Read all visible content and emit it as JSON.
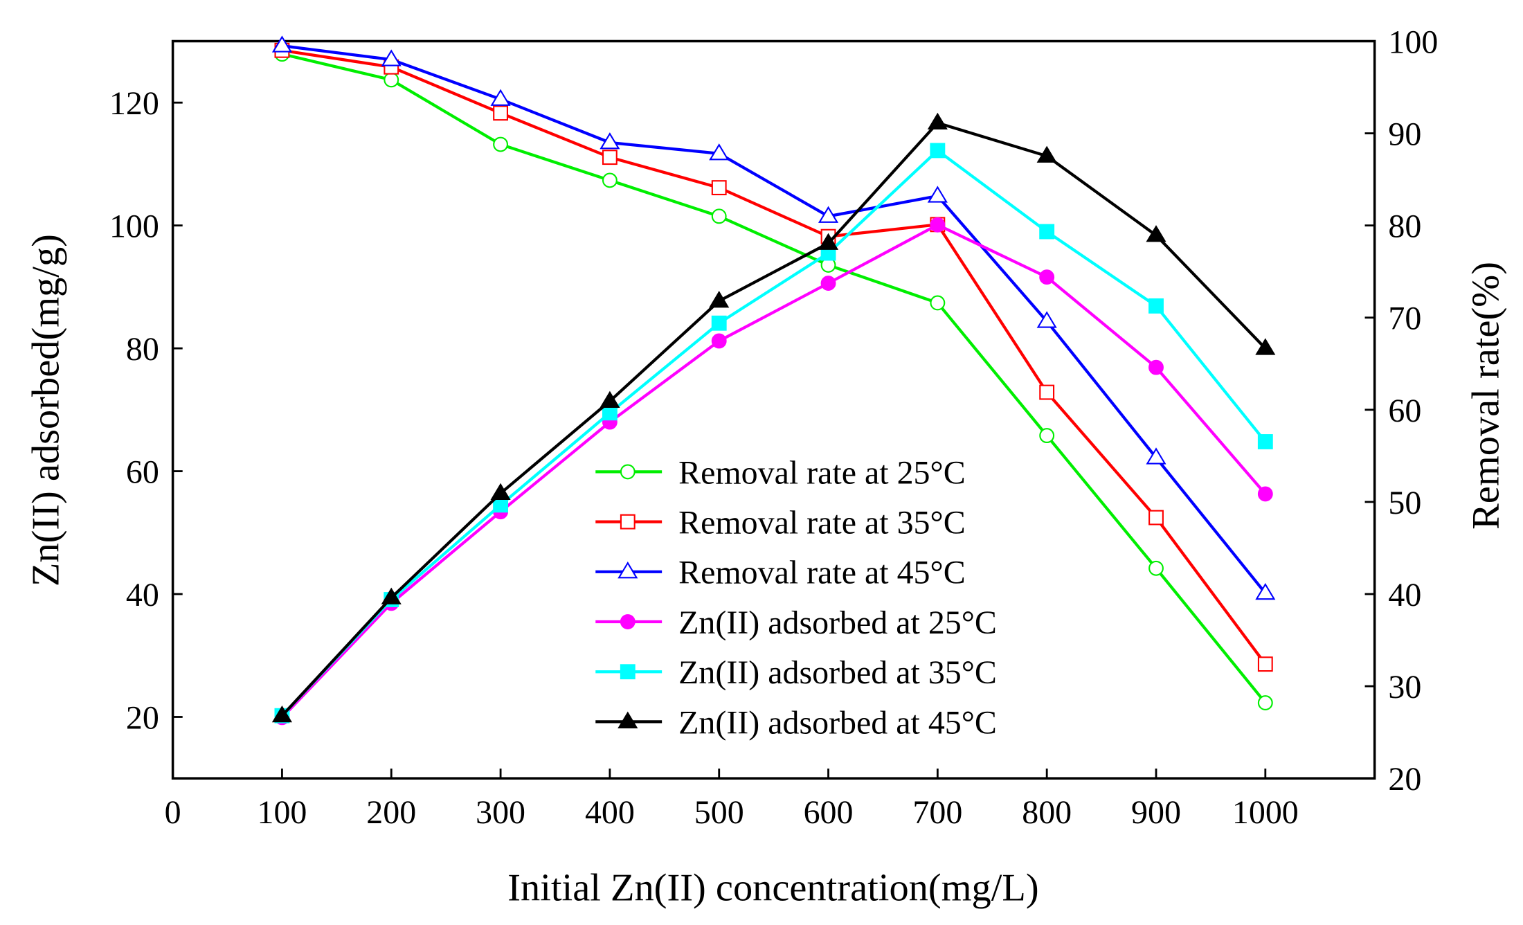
{
  "chart_data": {
    "type": "line",
    "xlabel": "Initial Zn(II) concentration(mg/L)",
    "ylabel_left": "Zn(II) adsorbed(mg/g)",
    "ylabel_right": "Removal rate(%)",
    "xlim": [
      0,
      1100
    ],
    "ylim_left": [
      10,
      130
    ],
    "ylim_right": [
      20,
      100
    ],
    "xticks": [
      0,
      100,
      200,
      300,
      400,
      500,
      600,
      700,
      800,
      900,
      1000
    ],
    "yticks_left": [
      20,
      40,
      60,
      80,
      100,
      120
    ],
    "yticks_right": [
      20,
      30,
      40,
      50,
      60,
      70,
      80,
      90,
      100
    ],
    "grid": false,
    "legend_placement": "center",
    "x": [
      100,
      200,
      300,
      400,
      500,
      600,
      700,
      800,
      900,
      1000
    ],
    "series": [
      {
        "name": "Removal rate at 25°C",
        "axis": "right",
        "color": "#00ee00",
        "marker": "circle-open",
        "values": [
          98.6,
          95.8,
          88.8,
          84.9,
          81.0,
          75.7,
          71.6,
          57.2,
          42.8,
          28.2
        ]
      },
      {
        "name": "Removal rate at 35°C",
        "axis": "right",
        "color": "#ff0000",
        "marker": "square-open",
        "values": [
          99.0,
          97.2,
          92.2,
          87.4,
          84.1,
          78.8,
          80.1,
          61.9,
          48.3,
          32.4
        ]
      },
      {
        "name": "Removal rate at 45°C",
        "axis": "right",
        "color": "#0000ff",
        "marker": "triangle-open",
        "values": [
          99.5,
          98.0,
          93.7,
          89.0,
          87.8,
          81.0,
          83.2,
          69.6,
          54.8,
          40.1
        ]
      },
      {
        "name": "Zn(II) adsorbed at 25°C",
        "axis": "left",
        "color": "#ff00ff",
        "marker": "circle-filled",
        "values": [
          19.9,
          38.5,
          53.4,
          68.0,
          81.2,
          90.6,
          100.1,
          91.6,
          76.9,
          56.3
        ]
      },
      {
        "name": "Zn(II) adsorbed at 35°C",
        "axis": "left",
        "color": "#00ffff",
        "marker": "square-filled",
        "values": [
          20.2,
          39.1,
          54.5,
          69.5,
          84.1,
          95.5,
          112.2,
          99.0,
          86.9,
          64.8
        ]
      },
      {
        "name": "Zn(II) adsorbed at 45°C",
        "axis": "left",
        "color": "#000000",
        "marker": "triangle-filled",
        "values": [
          20.2,
          39.4,
          56.4,
          71.4,
          87.7,
          97.1,
          116.7,
          111.3,
          98.4,
          80.0
        ]
      }
    ]
  }
}
